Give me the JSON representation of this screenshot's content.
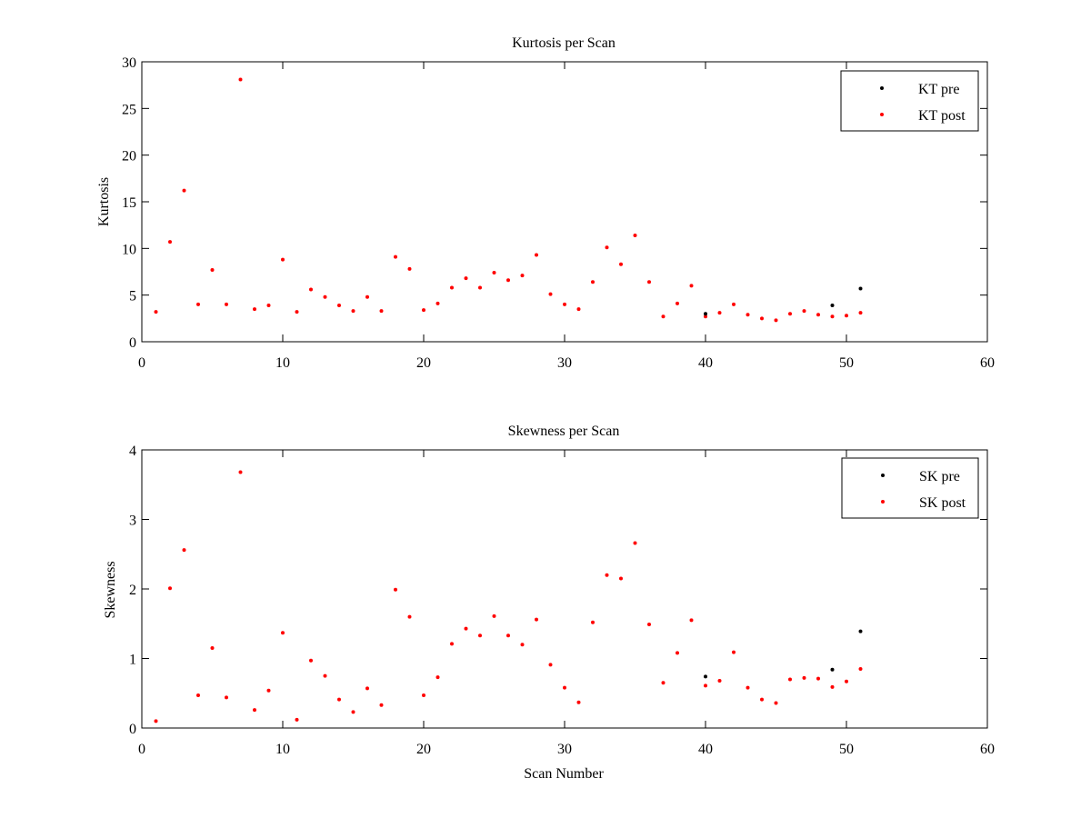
{
  "chart_data": [
    {
      "type": "scatter",
      "title": "Kurtosis per Scan",
      "xlabel": "",
      "ylabel": "Kurtosis",
      "xlim": [
        0,
        60
      ],
      "ylim": [
        0,
        30
      ],
      "xticks": [
        "0",
        "10",
        "20",
        "30",
        "40",
        "50",
        "60"
      ],
      "yticks": [
        "0",
        "5",
        "10",
        "15",
        "20",
        "25",
        "30"
      ],
      "grid": false,
      "legend_position": "top-right",
      "series": [
        {
          "name": "KT pre",
          "color": "#000000",
          "marker": "dot",
          "points": [
            [
              40,
              3.0
            ],
            [
              49,
              3.9
            ],
            [
              51,
              5.7
            ]
          ]
        },
        {
          "name": "KT post",
          "color": "#ff0000",
          "marker": "dot",
          "points": [
            [
              1,
              3.2
            ],
            [
              2,
              10.7
            ],
            [
              3,
              16.2
            ],
            [
              4,
              4.0
            ],
            [
              5,
              7.7
            ],
            [
              6,
              4.0
            ],
            [
              7,
              28.1
            ],
            [
              8,
              3.5
            ],
            [
              9,
              3.9
            ],
            [
              10,
              8.8
            ],
            [
              11,
              3.2
            ],
            [
              12,
              5.6
            ],
            [
              13,
              4.8
            ],
            [
              14,
              3.9
            ],
            [
              15,
              3.3
            ],
            [
              16,
              4.8
            ],
            [
              17,
              3.3
            ],
            [
              18,
              9.1
            ],
            [
              19,
              7.8
            ],
            [
              20,
              3.4
            ],
            [
              21,
              4.1
            ],
            [
              22,
              5.8
            ],
            [
              23,
              6.8
            ],
            [
              24,
              5.8
            ],
            [
              25,
              7.4
            ],
            [
              26,
              6.6
            ],
            [
              27,
              7.1
            ],
            [
              28,
              9.3
            ],
            [
              29,
              5.1
            ],
            [
              30,
              4.0
            ],
            [
              31,
              3.5
            ],
            [
              32,
              6.4
            ],
            [
              33,
              10.1
            ],
            [
              34,
              8.3
            ],
            [
              35,
              11.4
            ],
            [
              36,
              6.4
            ],
            [
              37,
              2.7
            ],
            [
              38,
              4.1
            ],
            [
              39,
              6.0
            ],
            [
              40,
              2.7
            ],
            [
              41,
              3.1
            ],
            [
              42,
              4.0
            ],
            [
              43,
              2.9
            ],
            [
              44,
              2.5
            ],
            [
              45,
              2.3
            ],
            [
              46,
              3.0
            ],
            [
              47,
              3.3
            ],
            [
              48,
              2.9
            ],
            [
              49,
              2.7
            ],
            [
              50,
              2.8
            ],
            [
              51,
              3.1
            ]
          ]
        }
      ]
    },
    {
      "type": "scatter",
      "title": "Skewness per Scan",
      "xlabel": "Scan Number",
      "ylabel": "Skewness",
      "xlim": [
        0,
        60
      ],
      "ylim": [
        0,
        4
      ],
      "xticks": [
        "0",
        "10",
        "20",
        "30",
        "40",
        "50",
        "60"
      ],
      "yticks": [
        "0",
        "1",
        "2",
        "3",
        "4"
      ],
      "grid": false,
      "legend_position": "top-right",
      "series": [
        {
          "name": "SK pre",
          "color": "#000000",
          "marker": "dot",
          "points": [
            [
              40,
              0.74
            ],
            [
              49,
              0.84
            ],
            [
              51,
              1.39
            ]
          ]
        },
        {
          "name": "SK post",
          "color": "#ff0000",
          "marker": "dot",
          "points": [
            [
              1,
              0.1
            ],
            [
              2,
              2.01
            ],
            [
              3,
              2.56
            ],
            [
              4,
              0.47
            ],
            [
              5,
              1.15
            ],
            [
              6,
              0.44
            ],
            [
              7,
              3.68
            ],
            [
              8,
              0.26
            ],
            [
              9,
              0.54
            ],
            [
              10,
              1.37
            ],
            [
              11,
              0.12
            ],
            [
              12,
              0.97
            ],
            [
              13,
              0.75
            ],
            [
              14,
              0.41
            ],
            [
              15,
              0.23
            ],
            [
              16,
              0.57
            ],
            [
              17,
              0.33
            ],
            [
              18,
              1.99
            ],
            [
              19,
              1.6
            ],
            [
              20,
              0.47
            ],
            [
              21,
              0.73
            ],
            [
              22,
              1.21
            ],
            [
              23,
              1.43
            ],
            [
              24,
              1.33
            ],
            [
              25,
              1.61
            ],
            [
              26,
              1.33
            ],
            [
              27,
              1.2
            ],
            [
              28,
              1.56
            ],
            [
              29,
              0.91
            ],
            [
              30,
              0.58
            ],
            [
              31,
              0.37
            ],
            [
              32,
              1.52
            ],
            [
              33,
              2.2
            ],
            [
              34,
              2.15
            ],
            [
              35,
              2.66
            ],
            [
              36,
              1.49
            ],
            [
              37,
              0.65
            ],
            [
              38,
              1.08
            ],
            [
              39,
              1.55
            ],
            [
              40,
              0.61
            ],
            [
              41,
              0.68
            ],
            [
              42,
              1.09
            ],
            [
              43,
              0.58
            ],
            [
              44,
              0.41
            ],
            [
              45,
              0.36
            ],
            [
              46,
              0.7
            ],
            [
              47,
              0.72
            ],
            [
              48,
              0.71
            ],
            [
              49,
              0.59
            ],
            [
              50,
              0.67
            ],
            [
              51,
              0.85
            ]
          ]
        }
      ]
    }
  ]
}
